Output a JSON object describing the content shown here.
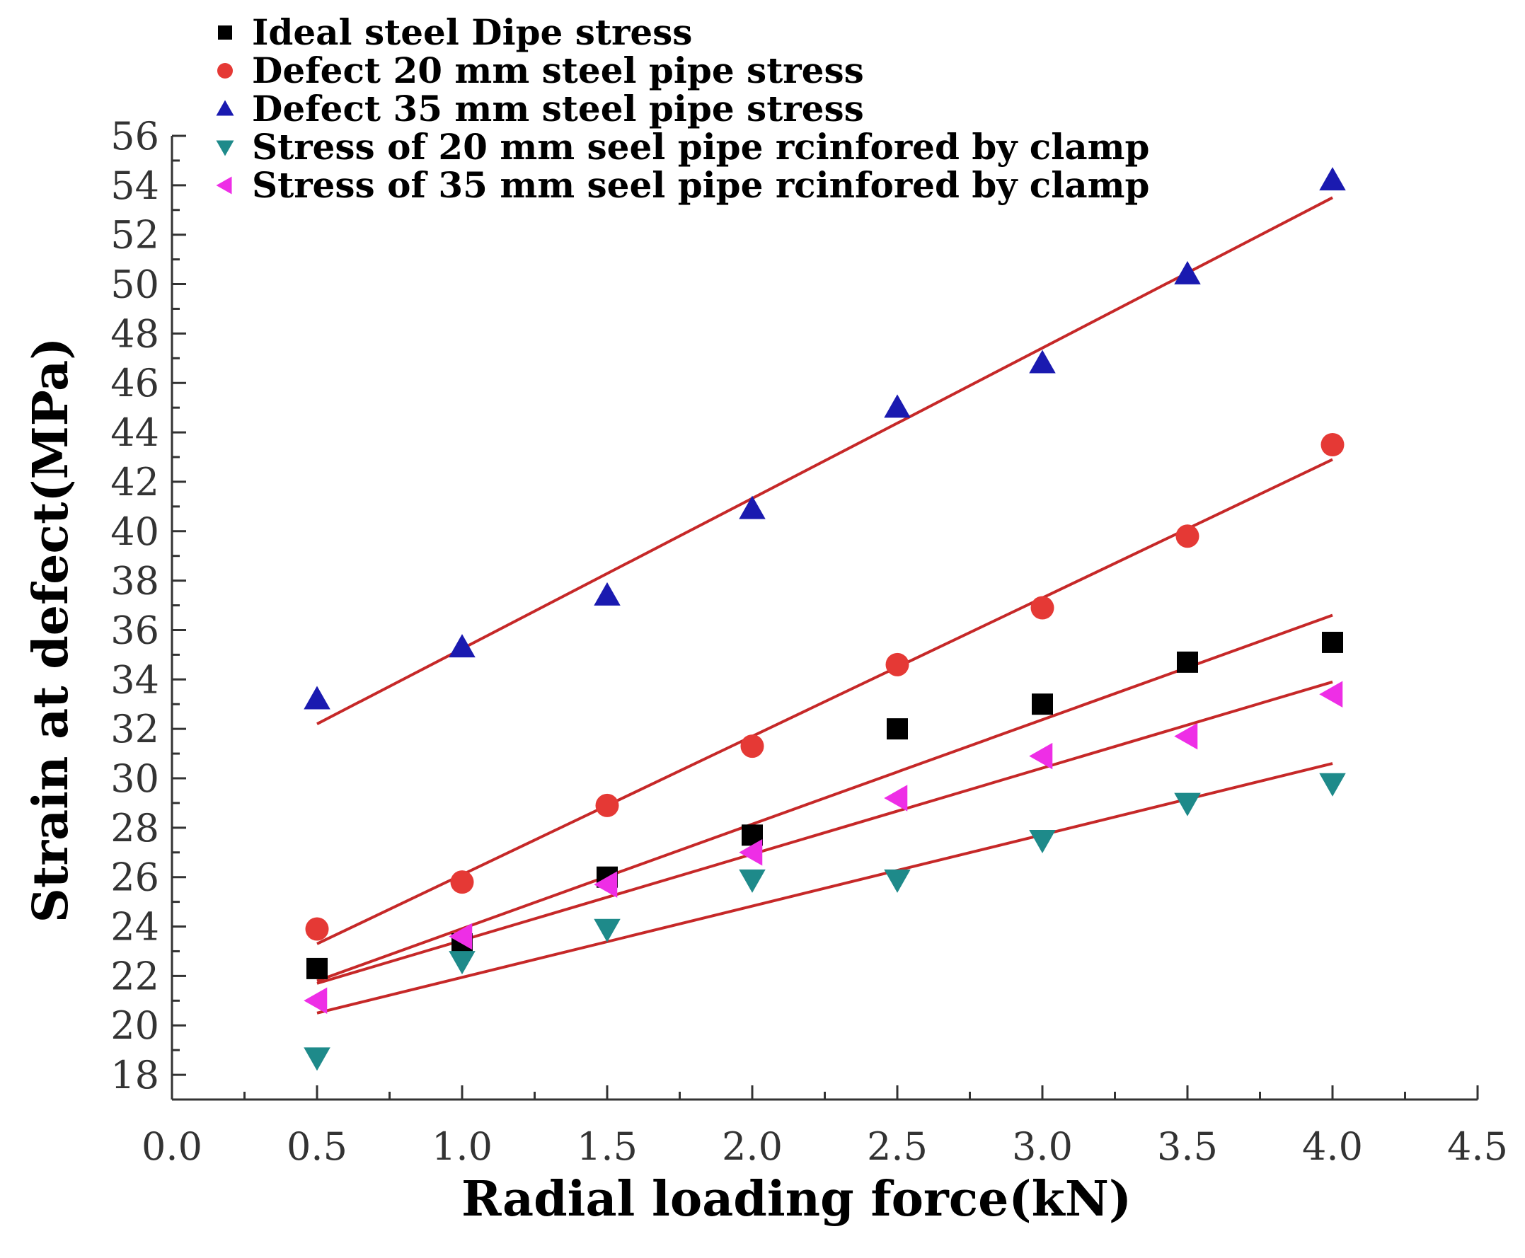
{
  "chart_data": {
    "type": "scatter",
    "title": "",
    "xlabel": "Radial loading force(kN)",
    "ylabel": "Strain at defect(MPa)",
    "xlim": [
      0.0,
      4.5
    ],
    "ylim": [
      17,
      56
    ],
    "x_ticks": [
      "0.0",
      "0.5",
      "1.0",
      "1.5",
      "2.0",
      "2.5",
      "3.0",
      "3.5",
      "4.0",
      "4.5"
    ],
    "y_ticks": [
      "18",
      "20",
      "22",
      "24",
      "26",
      "28",
      "30",
      "32",
      "34",
      "36",
      "38",
      "40",
      "42",
      "44",
      "46",
      "48",
      "50",
      "52",
      "54",
      "56"
    ],
    "x": [
      0.5,
      1.0,
      1.5,
      2.0,
      2.5,
      3.0,
      3.5,
      4.0
    ],
    "grid": false,
    "legend_position": "top-left",
    "fit_line_color": "#c62828",
    "series": [
      {
        "name": "Ideal steel Dipe stress",
        "marker": "square",
        "color": "#000000",
        "values": [
          22.3,
          23.3,
          26.0,
          27.7,
          32.0,
          33.0,
          34.7,
          35.5
        ],
        "fit": [
          21.8,
          36.6
        ]
      },
      {
        "name": "Defect 20 mm steel pipe stress",
        "marker": "circle",
        "color": "#e53935",
        "values": [
          23.9,
          25.8,
          28.9,
          31.3,
          34.6,
          36.9,
          39.8,
          43.5
        ],
        "fit": [
          23.3,
          42.9
        ]
      },
      {
        "name": "Defect 35 mm steel pipe stress",
        "marker": "triangle-up",
        "color": "#1a1ab0",
        "values": [
          33.2,
          35.3,
          37.4,
          40.9,
          45.0,
          46.8,
          50.4,
          54.2
        ],
        "fit": [
          32.2,
          53.5
        ]
      },
      {
        "name": "Stress of 20 mm seel pipe rcinfored by clamp",
        "marker": "triangle-down",
        "color": "#1e8a8a",
        "values": [
          18.7,
          22.6,
          23.9,
          25.9,
          25.9,
          27.5,
          29.0,
          29.8
        ],
        "fit": [
          20.5,
          30.6
        ]
      },
      {
        "name": "Stress of 35 mm seel pipe rcinfored by clamp",
        "marker": "triangle-left",
        "color": "#ee2ee6",
        "values": [
          21.0,
          23.6,
          25.7,
          27.0,
          29.2,
          30.9,
          31.7,
          33.4
        ],
        "fit": [
          21.7,
          33.9
        ]
      }
    ]
  }
}
